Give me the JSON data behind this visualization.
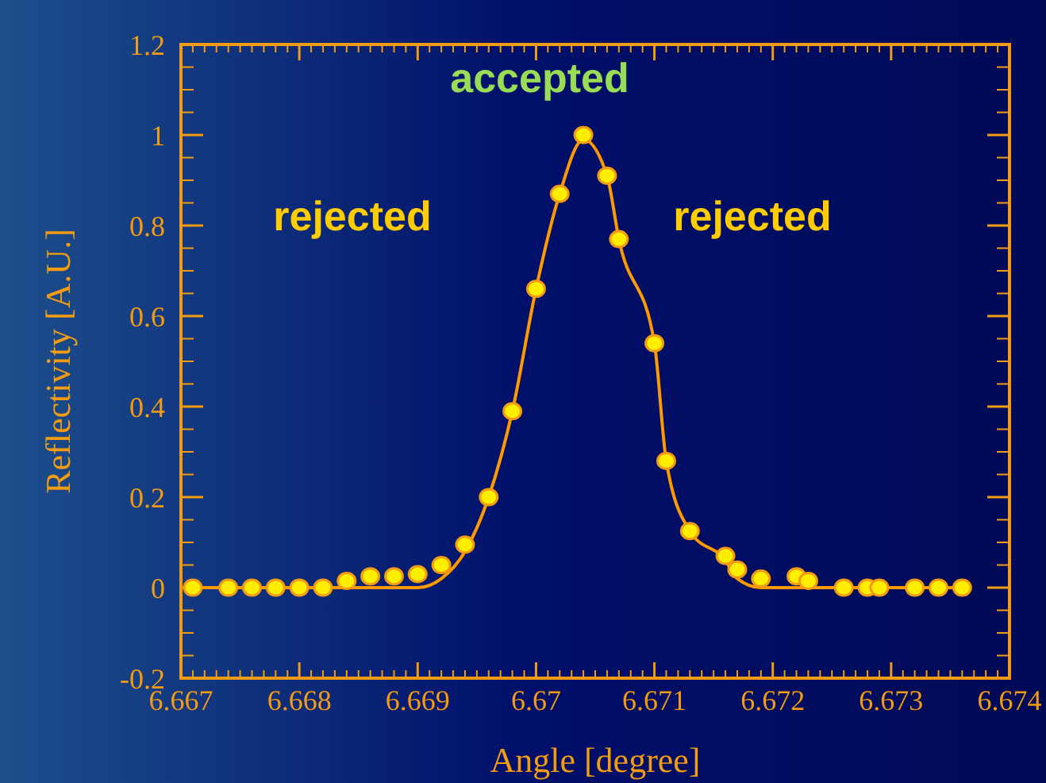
{
  "chart_data": {
    "type": "scatter",
    "xlabel": "Angle [degree]",
    "ylabel": "Reflectivity [A.U.]",
    "annotations": [
      "accepted",
      "rejected",
      "rejected"
    ],
    "xlim": [
      6.667,
      6.674
    ],
    "xticks": [
      6.667,
      6.668,
      6.669,
      6.67,
      6.671,
      6.672,
      6.673,
      6.674
    ],
    "ylim": [
      -0.2,
      1.2
    ],
    "yticks": [
      -0.2,
      0,
      0.2,
      0.4,
      0.6,
      0.8,
      1,
      1.2
    ],
    "grid": false,
    "marker": "circle",
    "series": [
      {
        "type": "line",
        "marker": "none",
        "color": "#ff9900",
        "x": [
          6.6671,
          6.6674,
          6.6676,
          6.6678,
          6.668,
          6.6682,
          6.6684,
          6.6686,
          6.6688,
          6.669,
          6.6692,
          6.6694,
          6.6696,
          6.6698,
          6.67,
          6.6702,
          6.6704,
          6.6706,
          6.6707,
          6.671,
          6.6711,
          6.6713,
          6.6716,
          6.6717,
          6.6719,
          6.6722,
          6.6723,
          6.6726,
          6.6728,
          6.6729,
          6.6732,
          6.6734,
          6.6736
        ],
        "values": [
          0,
          0,
          0,
          0,
          0,
          0,
          0,
          0,
          0,
          0,
          0.02,
          0.08,
          0.2,
          0.39,
          0.66,
          0.87,
          0.99,
          0.91,
          0.77,
          0.54,
          0.28,
          0.125,
          0.06,
          0.02,
          0,
          0,
          0,
          0,
          0,
          0,
          0,
          0,
          0
        ]
      },
      {
        "color": "#ffee00",
        "x": [
          6.6671,
          6.6674,
          6.6676,
          6.6678,
          6.668,
          6.6682,
          6.6684,
          6.6686,
          6.6688,
          6.669,
          6.6692,
          6.6694,
          6.6696,
          6.6698,
          6.67,
          6.6702,
          6.6704,
          6.6706,
          6.6707,
          6.671,
          6.6711,
          6.6713,
          6.6716,
          6.6717,
          6.6719,
          6.6722,
          6.6723,
          6.6726,
          6.6728,
          6.6729,
          6.6732,
          6.6734,
          6.6736
        ],
        "values": [
          0,
          0,
          0,
          0,
          0,
          0,
          0.015,
          0.025,
          0.025,
          0.03,
          0.05,
          0.095,
          0.2,
          0.39,
          0.66,
          0.87,
          1,
          0.91,
          0.77,
          0.54,
          0.28,
          0.125,
          0.07,
          0.04,
          0.02,
          0.025,
          0.015,
          0,
          0,
          0,
          0,
          0,
          0
        ]
      }
    ]
  }
}
